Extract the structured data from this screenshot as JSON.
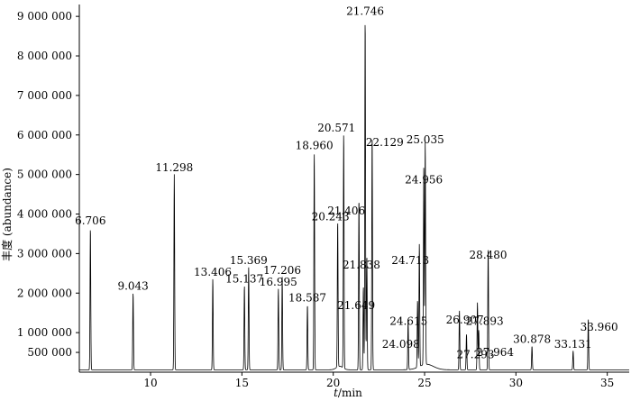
{
  "chart_data": {
    "type": "line",
    "title": "",
    "xlabel": "t/min",
    "xlabel_parts": {
      "var": "t",
      "unit": "/min"
    },
    "ylabel": "丰度 (abundance)",
    "xlim": [
      6.1,
      36.2
    ],
    "ylim": [
      0,
      9300000
    ],
    "x_ticks": [
      10,
      15,
      20,
      25,
      30,
      35
    ],
    "x_tick_labels": [
      "10",
      "15",
      "20",
      "25",
      "30",
      "35"
    ],
    "y_ticks": [
      500000,
      1000000,
      2000000,
      3000000,
      4000000,
      5000000,
      6000000,
      7000000,
      8000000,
      9000000
    ],
    "y_tick_labels": [
      "500 000",
      "1 000 000",
      "2 000 000",
      "3 000 000",
      "4 000 000",
      "5 000 000",
      "6 000 000",
      "7 000 000",
      "8 000 000",
      "9 000 000"
    ],
    "grid": false,
    "legend": "none",
    "line_color": "#000000",
    "peaks": [
      {
        "x": 6.706,
        "y": 3600000,
        "label": "6.706"
      },
      {
        "x": 9.043,
        "y": 1950000,
        "label": "9.043"
      },
      {
        "x": 11.298,
        "y": 4950000,
        "label": "11.298"
      },
      {
        "x": 13.406,
        "y": 2300000,
        "label": "13.406"
      },
      {
        "x": 15.137,
        "y": 2130000,
        "label": "15.137"
      },
      {
        "x": 15.369,
        "y": 2600000,
        "label": "15.369"
      },
      {
        "x": 16.995,
        "y": 2050000,
        "label": "16.995"
      },
      {
        "x": 17.206,
        "y": 2350000,
        "label": "17.206"
      },
      {
        "x": 18.587,
        "y": 1650000,
        "label": "18.587"
      },
      {
        "x": 18.96,
        "y": 5500000,
        "label": "18.960"
      },
      {
        "x": 20.243,
        "y": 3700000,
        "label": "20.243"
      },
      {
        "x": 20.571,
        "y": 5950000,
        "label": "20.571"
      },
      {
        "x": 21.406,
        "y": 4350000,
        "label": "21.406"
      },
      {
        "x": 21.649,
        "y": 2100000,
        "label": "21.649"
      },
      {
        "x": 21.746,
        "y": 8900000,
        "label": "21.746"
      },
      {
        "x": 21.838,
        "y": 2900000,
        "label": "21.838"
      },
      {
        "x": 22.129,
        "y": 5950000,
        "label": "22.129"
      },
      {
        "x": 24.098,
        "y": 1250000,
        "label": "24.098"
      },
      {
        "x": 24.615,
        "y": 1700000,
        "label": "24.615"
      },
      {
        "x": 24.713,
        "y": 3100000,
        "label": "24.713"
      },
      {
        "x": 24.956,
        "y": 5050000,
        "label": "24.956"
      },
      {
        "x": 25.035,
        "y": 5650000,
        "label": "25.035"
      },
      {
        "x": 26.907,
        "y": 1500000,
        "label": "26.907"
      },
      {
        "x": 27.293,
        "y": 900000,
        "label": "27.293"
      },
      {
        "x": 27.893,
        "y": 1700000,
        "label": "27.893"
      },
      {
        "x": 27.964,
        "y": 1000000,
        "label": "27.964"
      },
      {
        "x": 28.48,
        "y": 3100000,
        "label": "28.480"
      },
      {
        "x": 30.878,
        "y": 600000,
        "label": "30.878"
      },
      {
        "x": 33.131,
        "y": 480000,
        "label": "33.131"
      },
      {
        "x": 33.96,
        "y": 1280000,
        "label": "33.960"
      }
    ]
  }
}
